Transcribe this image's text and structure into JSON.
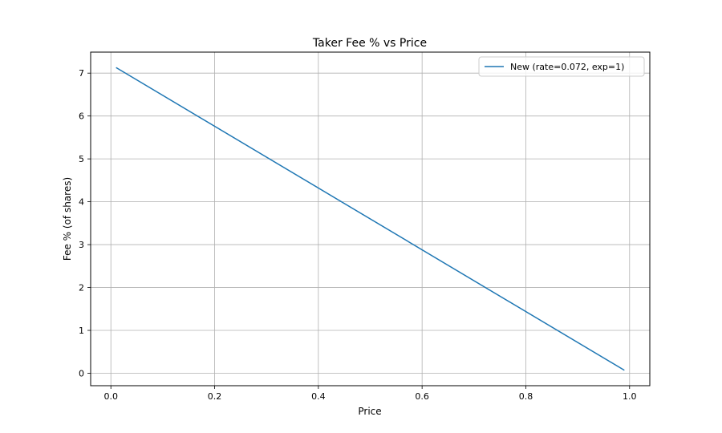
{
  "chart_data": {
    "type": "line",
    "title": "Taker Fee % vs Price",
    "xlabel": "Price",
    "ylabel": "Fee % (of shares)",
    "xlim": [
      -0.039,
      1.039
    ],
    "ylim": [
      -0.29,
      7.49
    ],
    "xticks": [
      0.0,
      0.2,
      0.4,
      0.6,
      0.8,
      1.0
    ],
    "xtick_labels": [
      "0.0",
      "0.2",
      "0.4",
      "0.6",
      "0.8",
      "1.0"
    ],
    "yticks": [
      0,
      1,
      2,
      3,
      4,
      5,
      6,
      7
    ],
    "ytick_labels": [
      "0",
      "1",
      "2",
      "3",
      "4",
      "5",
      "6",
      "7"
    ],
    "grid": true,
    "legend_position": "top-right",
    "series": [
      {
        "name": "New (rate=0.072, exp=1)",
        "color": "#1f77b4",
        "x": [
          0.01,
          0.99
        ],
        "y": [
          7.13,
          0.07
        ]
      }
    ]
  }
}
